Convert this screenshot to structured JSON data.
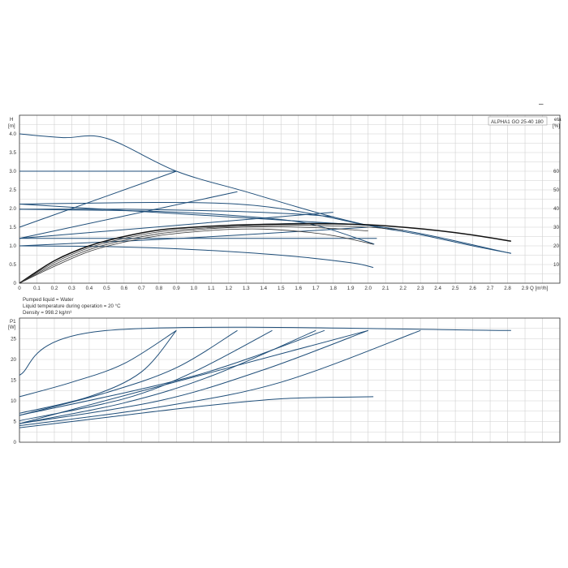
{
  "top_right_mark": "–",
  "model_label": "ALPHA1 GO 25-40 180",
  "info_lines": [
    "Pumped liquid = Water",
    "Liquid temperature during operation = 20 °C",
    "Density = 998.2 kg/m³"
  ],
  "chart_data": [
    {
      "type": "line",
      "title": "",
      "xlabel": "Q [m³/h]",
      "ylabel": "H\n[m]",
      "y2label": "eta\n[%]",
      "xlim": [
        0,
        3.1
      ],
      "ylim": [
        0,
        4.5
      ],
      "y2lim": [
        0,
        90
      ],
      "x_ticks": [
        "0",
        "0.1",
        "0.2",
        "0.3",
        "0.4",
        "0.5",
        "0.6",
        "0.7",
        "0.8",
        "0.9",
        "1.0",
        "1.1",
        "1.2",
        "1.3",
        "1.4",
        "1.5",
        "1.6",
        "1.7",
        "1.8",
        "1.9",
        "2.0",
        "2.1",
        "2.2",
        "2.3",
        "2.4",
        "2.5",
        "2.6",
        "2.7",
        "2.8",
        "2.9"
      ],
      "y_ticks": [
        "0",
        "0.5",
        "1.0",
        "1.5",
        "2.0",
        "2.5",
        "3.0",
        "3.5",
        "4.0"
      ],
      "y2_ticks": [
        "10",
        "20",
        "30",
        "40",
        "50",
        "60"
      ],
      "grid": true,
      "head_series": [
        {
          "x": [
            0,
            0.25,
            0.5,
            0.9,
            1.3,
            1.7,
            2.0,
            2.3,
            2.6,
            2.82
          ],
          "y": [
            4.0,
            3.9,
            3.88,
            3.0,
            2.45,
            1.9,
            1.55,
            1.3,
            1.0,
            0.8
          ]
        },
        {
          "x": [
            0,
            0.9
          ],
          "y": [
            3.0,
            3.0
          ]
        },
        {
          "x": [
            0,
            1.25,
            2.0
          ],
          "y": [
            2.12,
            2.12,
            1.55
          ]
        },
        {
          "x": [
            0,
            0.6,
            1.2,
            1.6,
            1.8
          ],
          "y": [
            1.98,
            1.98,
            1.93,
            1.85,
            1.78
          ]
        },
        {
          "x": [
            0,
            0.5,
            1.0,
            1.4,
            1.75,
            2.05
          ],
          "y": [
            1.2,
            1.2,
            1.2,
            1.2,
            1.2,
            1.2
          ]
        },
        {
          "x": [
            0,
            0.5,
            1.0,
            1.5,
            1.9,
            2.03
          ],
          "y": [
            1.0,
            0.98,
            0.9,
            0.75,
            0.55,
            0.42
          ]
        },
        {
          "x": [
            0,
            0.9
          ],
          "y": [
            1.5,
            3.0
          ]
        },
        {
          "x": [
            0,
            1.25
          ],
          "y": [
            1.2,
            2.45
          ]
        },
        {
          "x": [
            0,
            1.8
          ],
          "y": [
            1.2,
            1.9
          ]
        },
        {
          "x": [
            0,
            1.0,
            2.0
          ],
          "y": [
            1.0,
            1.22,
            1.5
          ]
        },
        {
          "x": [
            0,
            2.0
          ],
          "y": [
            2.12,
            1.55
          ]
        },
        {
          "x": [
            0,
            0.8,
            1.4,
            1.7,
            2.0,
            2.03
          ],
          "y": [
            1.98,
            1.92,
            1.75,
            1.55,
            1.1,
            1.05
          ]
        },
        {
          "x": [
            1.2,
            2.0,
            2.82
          ],
          "y": [
            1.55,
            1.55,
            0.8
          ]
        }
      ],
      "eta_series": [
        {
          "x": [
            0,
            0.2,
            0.4,
            0.6,
            0.8,
            1.0,
            1.2,
            1.4,
            1.6,
            1.8,
            2.0,
            2.2,
            2.4,
            2.6,
            2.82
          ],
          "y": [
            0,
            12,
            20,
            25,
            28.5,
            30,
            31,
            31.5,
            31.8,
            31.8,
            31.3,
            30,
            28.2,
            25.8,
            22.5
          ]
        },
        {
          "x": [
            0,
            0.2,
            0.4,
            0.6,
            0.8,
            1.0,
            1.2,
            1.4,
            1.6,
            1.8,
            2.0,
            2.2
          ],
          "y": [
            0,
            11,
            19,
            24,
            27.5,
            29.2,
            30.3,
            30.8,
            31,
            30.7,
            30,
            28.5
          ]
        },
        {
          "x": [
            0,
            0.2,
            0.4,
            0.6,
            0.8,
            1.0,
            1.2,
            1.4,
            1.6,
            1.8,
            2.0
          ],
          "y": [
            0,
            10,
            18,
            23,
            26.5,
            28.5,
            29.8,
            30.2,
            30,
            29.3,
            28
          ]
        },
        {
          "x": [
            0,
            0.2,
            0.4,
            0.6,
            0.8,
            1.0,
            1.2,
            1.4,
            1.6,
            1.8,
            2.0,
            2.03
          ],
          "y": [
            0,
            9,
            17,
            22,
            25.5,
            27.5,
            28.8,
            29,
            27.8,
            25.5,
            21.5,
            20.8
          ]
        }
      ]
    },
    {
      "type": "line",
      "title": "",
      "xlabel": "",
      "ylabel": "P1\n[W]",
      "xlim": [
        0,
        3.1
      ],
      "ylim": [
        0,
        30
      ],
      "y_ticks": [
        "0",
        "5",
        "10",
        "15",
        "20",
        "25"
      ],
      "grid": true,
      "series": [
        {
          "x": [
            0,
            0.5,
            2.82
          ],
          "y": [
            16.2,
            27,
            27
          ]
        },
        {
          "x": [
            0,
            0.3,
            0.6,
            0.9
          ],
          "y": [
            11,
            14.5,
            19,
            27
          ]
        },
        {
          "x": [
            0,
            0.4,
            0.7,
            0.9
          ],
          "y": [
            7,
            11,
            17,
            27
          ]
        },
        {
          "x": [
            0,
            0.5,
            0.9,
            1.25
          ],
          "y": [
            6.5,
            12,
            18,
            27
          ]
        },
        {
          "x": [
            0,
            0.6,
            1.0,
            1.45
          ],
          "y": [
            5.2,
            10.5,
            17,
            27
          ]
        },
        {
          "x": [
            0,
            0.6,
            1.1,
            1.7
          ],
          "y": [
            4.5,
            9.5,
            16,
            27
          ]
        },
        {
          "x": [
            0,
            0.8,
            1.4,
            2.0
          ],
          "y": [
            4.5,
            10,
            17.5,
            27
          ]
        },
        {
          "x": [
            0,
            0.8,
            1.5,
            2.3
          ],
          "y": [
            4,
            8.5,
            14.5,
            27
          ]
        },
        {
          "x": [
            0,
            0.5,
            1.0,
            1.5,
            2.03
          ],
          "y": [
            3.5,
            6,
            8.5,
            10.5,
            11
          ]
        },
        {
          "x": [
            0,
            1.2,
            2.0
          ],
          "y": [
            4.5,
            18,
            27
          ]
        },
        {
          "x": [
            0,
            1.0,
            1.75
          ],
          "y": [
            6.5,
            16,
            27
          ]
        }
      ]
    }
  ]
}
